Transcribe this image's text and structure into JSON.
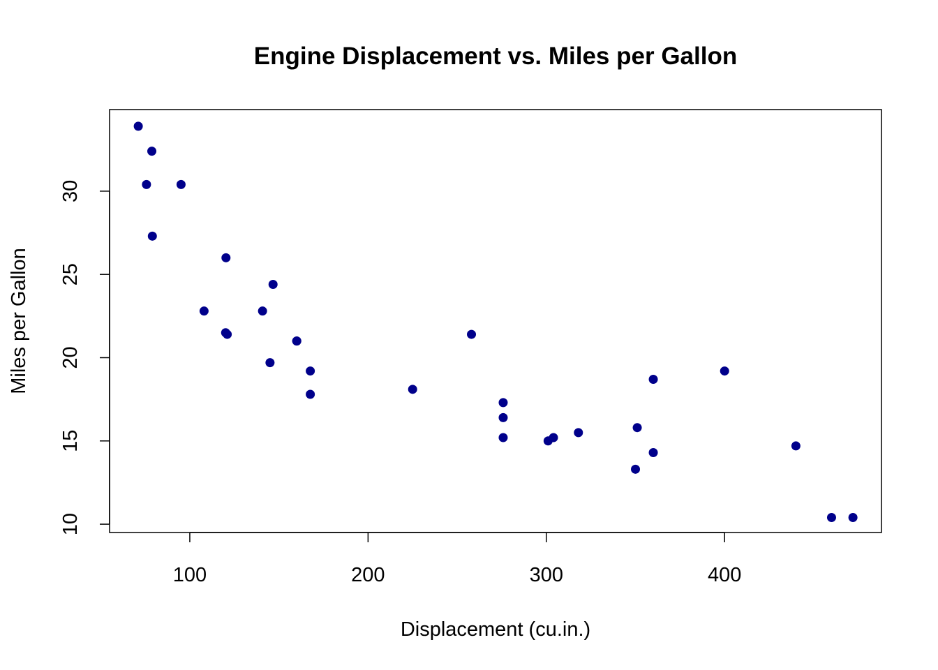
{
  "chart_data": {
    "type": "scatter",
    "title": "Engine Displacement vs. Miles per Gallon",
    "xlabel": "Displacement (cu.in.)",
    "ylabel": "Miles per Gallon",
    "xlim": [
      55,
      488
    ],
    "ylim": [
      9.5,
      34.9
    ],
    "x_ticks": [
      100,
      200,
      300,
      400
    ],
    "y_ticks": [
      10,
      15,
      20,
      25,
      30
    ],
    "grid": false,
    "legend": "none",
    "point_color": "#00008B",
    "series": [
      {
        "x": [
          71.1,
          75.7,
          78.7,
          79.0,
          95.1,
          108.0,
          120.1,
          120.3,
          121.0,
          140.8,
          145.0,
          146.7,
          160.0,
          160.0,
          167.6,
          167.6,
          225.0,
          258.0,
          275.8,
          275.8,
          275.8,
          301.0,
          304.0,
          318.0,
          350.0,
          351.0,
          360.0,
          360.0,
          400.0,
          440.0,
          460.0,
          472.0
        ],
        "y": [
          33.9,
          30.4,
          32.4,
          27.3,
          30.4,
          22.8,
          21.5,
          26.0,
          21.4,
          22.8,
          19.7,
          24.4,
          21.0,
          21.0,
          19.2,
          17.8,
          18.1,
          21.4,
          17.3,
          16.4,
          15.2,
          15.0,
          15.2,
          15.5,
          13.3,
          15.8,
          14.3,
          18.7,
          19.2,
          14.7,
          10.4,
          10.4
        ]
      }
    ]
  }
}
